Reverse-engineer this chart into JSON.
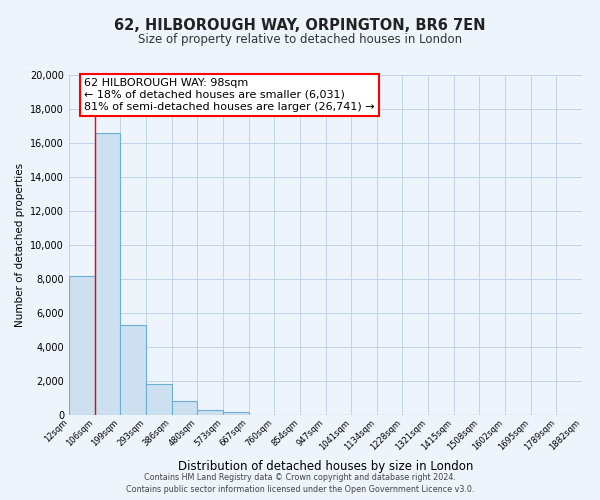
{
  "title": "62, HILBOROUGH WAY, ORPINGTON, BR6 7EN",
  "subtitle": "Size of property relative to detached houses in London",
  "xlabel": "Distribution of detached houses by size in London",
  "ylabel": "Number of detached properties",
  "bin_labels": [
    "12sqm",
    "106sqm",
    "199sqm",
    "293sqm",
    "386sqm",
    "480sqm",
    "573sqm",
    "667sqm",
    "760sqm",
    "854sqm",
    "947sqm",
    "1041sqm",
    "1134sqm",
    "1228sqm",
    "1321sqm",
    "1415sqm",
    "1508sqm",
    "1602sqm",
    "1695sqm",
    "1789sqm",
    "1882sqm"
  ],
  "bar_heights": [
    8200,
    16600,
    5300,
    1850,
    800,
    300,
    200,
    0,
    0,
    0,
    0,
    0,
    0,
    0,
    0,
    0,
    0,
    0,
    0,
    0
  ],
  "bar_color": "#cce0f0",
  "bar_edge_color": "#6baed6",
  "red_line_x": 1,
  "annotation_text_line1": "62 HILBOROUGH WAY: 98sqm",
  "annotation_text_line2": "← 18% of detached houses are smaller (6,031)",
  "annotation_text_line3": "81% of semi-detached houses are larger (26,741) →",
  "ylim": [
    0,
    20000
  ],
  "yticks": [
    0,
    2000,
    4000,
    6000,
    8000,
    10000,
    12000,
    14000,
    16000,
    18000,
    20000
  ],
  "footer_line1": "Contains HM Land Registry data © Crown copyright and database right 2024.",
  "footer_line2": "Contains public sector information licensed under the Open Government Licence v3.0.",
  "bg_color": "#eef4fb",
  "plot_bg_color": "#eef4fb",
  "grid_color": "#c0d4e8"
}
